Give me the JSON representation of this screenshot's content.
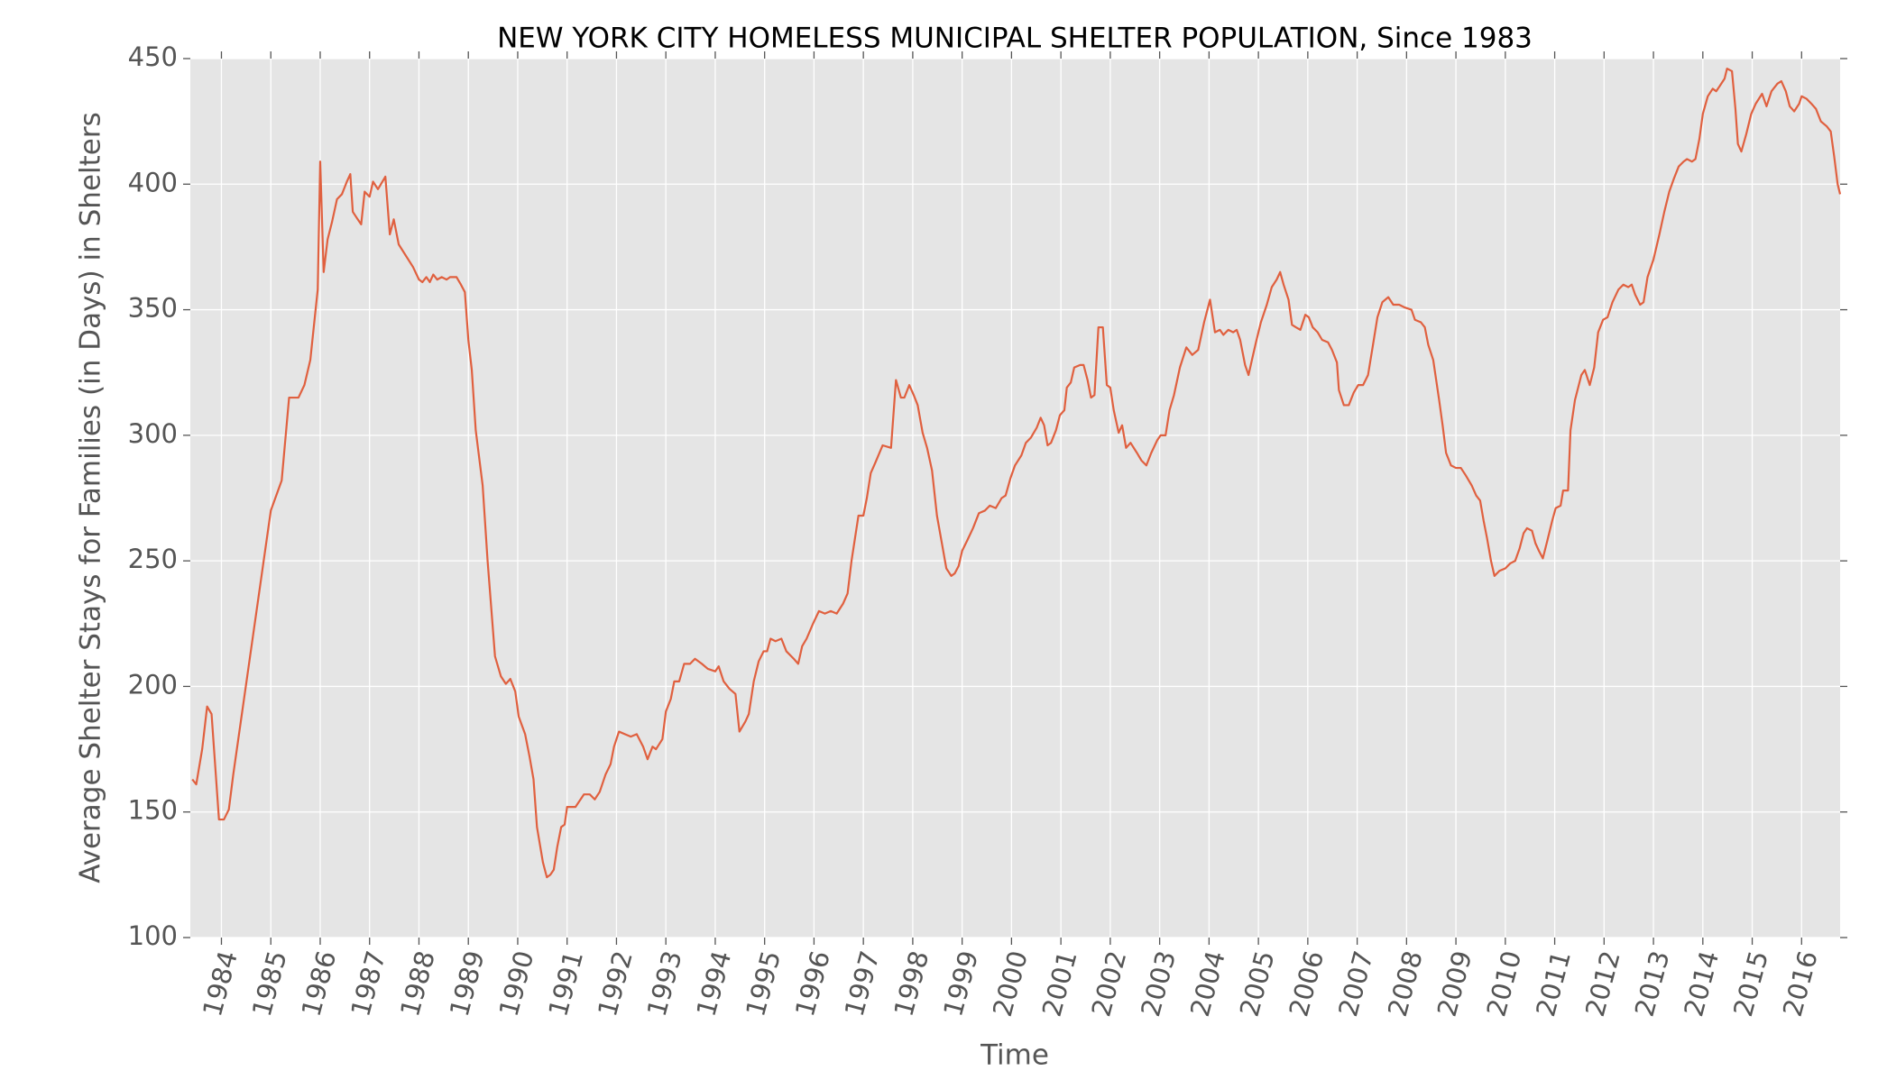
{
  "chart_data": {
    "type": "line",
    "title": "NEW YORK CITY HOMELESS MUNICIPAL SHELTER POPULATION, Since 1983",
    "xlabel": "Time",
    "ylabel": "Average Shelter Stays for Families (in Days) in Shelters",
    "color": "#e0603f",
    "grid": true,
    "xlim": [
      1983.37,
      2016.78
    ],
    "ylim": [
      100,
      450
    ],
    "xticks": [
      1984,
      1985,
      1986,
      1987,
      1988,
      1989,
      1990,
      1991,
      1992,
      1993,
      1994,
      1995,
      1996,
      1997,
      1998,
      1999,
      2000,
      2001,
      2002,
      2003,
      2004,
      2005,
      2006,
      2007,
      2008,
      2009,
      2010,
      2011,
      2012,
      2013,
      2014,
      2015,
      2016
    ],
    "yticks": [
      100,
      150,
      200,
      250,
      300,
      350,
      400,
      450
    ],
    "x": [
      1983.41,
      1983.49,
      1983.61,
      1983.71,
      1983.8,
      1983.95,
      1984.05,
      1984.15,
      1984.24,
      1985.0,
      1985.22,
      1985.37,
      1985.56,
      1985.68,
      1985.8,
      1985.88,
      1985.95,
      1986.0,
      1986.07,
      1986.15,
      1986.24,
      1986.34,
      1986.44,
      1986.54,
      1986.61,
      1986.66,
      1986.76,
      1986.83,
      1986.9,
      1987.0,
      1987.07,
      1987.17,
      1987.32,
      1987.41,
      1987.49,
      1987.59,
      1987.88,
      1988.0,
      1988.07,
      1988.15,
      1988.22,
      1988.29,
      1988.37,
      1988.46,
      1988.56,
      1988.63,
      1988.76,
      1988.85,
      1988.93,
      1989.0,
      1989.07,
      1989.15,
      1989.29,
      1989.39,
      1989.54,
      1989.66,
      1989.76,
      1989.85,
      1989.95,
      1990.02,
      1990.15,
      1990.24,
      1990.32,
      1990.39,
      1990.51,
      1990.59,
      1990.66,
      1990.73,
      1990.8,
      1990.88,
      1990.95,
      1991.0,
      1991.17,
      1991.34,
      1991.46,
      1991.56,
      1991.66,
      1991.78,
      1991.88,
      1991.95,
      1992.05,
      1992.17,
      1992.29,
      1992.41,
      1992.54,
      1992.63,
      1992.73,
      1992.8,
      1992.93,
      1993.0,
      1993.1,
      1993.17,
      1993.27,
      1993.37,
      1993.49,
      1993.59,
      1993.73,
      1993.85,
      1994.0,
      1994.07,
      1994.17,
      1994.29,
      1994.41,
      1994.49,
      1994.61,
      1994.68,
      1994.78,
      1994.88,
      1994.98,
      1995.05,
      1995.12,
      1995.22,
      1995.34,
      1995.44,
      1995.59,
      1995.68,
      1995.76,
      1995.85,
      1995.98,
      1996.1,
      1996.22,
      1996.34,
      1996.46,
      1996.59,
      1996.68,
      1996.76,
      1996.83,
      1996.9,
      1997.0,
      1997.07,
      1997.15,
      1997.24,
      1997.39,
      1997.56,
      1997.66,
      1997.76,
      1997.83,
      1997.93,
      1998.02,
      1998.1,
      1998.2,
      1998.29,
      1998.39,
      1998.49,
      1998.59,
      1998.68,
      1998.78,
      1998.85,
      1998.93,
      1999.0,
      1999.1,
      1999.22,
      1999.34,
      1999.46,
      1999.56,
      1999.68,
      1999.8,
      1999.88,
      1999.98,
      2000.07,
      2000.2,
      2000.29,
      2000.39,
      2000.51,
      2000.59,
      2000.66,
      2000.73,
      2000.8,
      2000.9,
      2000.98,
      2001.07,
      2001.12,
      2001.2,
      2001.27,
      2001.39,
      2001.46,
      2001.54,
      2001.61,
      2001.68,
      2001.76,
      2001.85,
      2001.93,
      2002.0,
      2002.07,
      2002.17,
      2002.24,
      2002.32,
      2002.41,
      2002.54,
      2002.63,
      2002.73,
      2002.83,
      2002.95,
      2003.02,
      2003.12,
      2003.2,
      2003.29,
      2003.41,
      2003.54,
      2003.66,
      2003.78,
      2003.9,
      2004.02,
      2004.12,
      2004.22,
      2004.29,
      2004.39,
      2004.49,
      2004.56,
      2004.63,
      2004.73,
      2004.8,
      2004.88,
      2004.95,
      2005.05,
      2005.17,
      2005.27,
      2005.37,
      2005.44,
      2005.51,
      2005.61,
      2005.68,
      2005.76,
      2005.85,
      2005.95,
      2006.02,
      2006.1,
      2006.2,
      2006.29,
      2006.41,
      2006.49,
      2006.59,
      2006.63,
      2006.73,
      2006.83,
      2006.93,
      2007.02,
      2007.12,
      2007.22,
      2007.32,
      2007.41,
      2007.51,
      2007.63,
      2007.73,
      2007.85,
      2007.95,
      2008.1,
      2008.17,
      2008.29,
      2008.37,
      2008.44,
      2008.54,
      2008.66,
      2008.73,
      2008.8,
      2008.9,
      2009.0,
      2009.1,
      2009.2,
      2009.32,
      2009.41,
      2009.49,
      2009.56,
      2009.63,
      2009.71,
      2009.78,
      2009.88,
      2010.0,
      2010.1,
      2010.2,
      2010.29,
      2010.37,
      2010.44,
      2010.54,
      2010.61,
      2010.68,
      2010.76,
      2010.85,
      2010.95,
      2011.02,
      2011.12,
      2011.17,
      2011.27,
      2011.32,
      2011.41,
      2011.54,
      2011.61,
      2011.71,
      2011.8,
      2011.88,
      2011.98,
      2012.07,
      2012.17,
      2012.29,
      2012.39,
      2012.49,
      2012.56,
      2012.63,
      2012.73,
      2012.8,
      2012.88,
      2013.0,
      2013.12,
      2013.22,
      2013.32,
      2013.41,
      2013.51,
      2013.61,
      2013.68,
      2013.78,
      2013.85,
      2013.93,
      2014.0,
      2014.1,
      2014.2,
      2014.27,
      2014.34,
      2014.44,
      2014.49,
      2014.59,
      2014.66,
      2014.71,
      2014.78,
      2014.88,
      2014.98,
      2015.07,
      2015.2,
      2015.29,
      2015.39,
      2015.51,
      2015.59,
      2015.68,
      2015.76,
      2015.85,
      2015.95,
      2016.0,
      2016.1,
      2016.2,
      2016.29,
      2016.39,
      2016.51,
      2016.59,
      2016.66,
      2016.73,
      2016.78
    ],
    "values": [
      163,
      161,
      175,
      192,
      189,
      147,
      147,
      151,
      165,
      270,
      282,
      315,
      315,
      320,
      330,
      345,
      358,
      409,
      365,
      378,
      385,
      394,
      396,
      401,
      404,
      389,
      386,
      384,
      397,
      395,
      401,
      398,
      403,
      380,
      386,
      376,
      367,
      362,
      361,
      363,
      361,
      364,
      362,
      363,
      362,
      363,
      363,
      360,
      357,
      338,
      326,
      302,
      280,
      250,
      212,
      204,
      201,
      203,
      198,
      188,
      181,
      172,
      163,
      144,
      130,
      124,
      125,
      127,
      136,
      144,
      145,
      152,
      152,
      157,
      157,
      155,
      158,
      165,
      169,
      176,
      182,
      181,
      180,
      181,
      176,
      171,
      176,
      175,
      179,
      190,
      195,
      202,
      202,
      209,
      209,
      211,
      209,
      207,
      206,
      208,
      202,
      199,
      197,
      182,
      186,
      189,
      202,
      210,
      214,
      214,
      219,
      218,
      219,
      214,
      211,
      209,
      216,
      219,
      225,
      230,
      229,
      230,
      229,
      233,
      237,
      250,
      259,
      268,
      268,
      275,
      285,
      289,
      296,
      295,
      322,
      315,
      315,
      320,
      316,
      312,
      301,
      295,
      286,
      268,
      257,
      247,
      244,
      245,
      248,
      254,
      258,
      263,
      269,
      270,
      272,
      271,
      275,
      276,
      283,
      288,
      292,
      297,
      299,
      303,
      307,
      304,
      296,
      297,
      302,
      308,
      310,
      319,
      321,
      327,
      328,
      328,
      322,
      315,
      316,
      343,
      343,
      320,
      319,
      310,
      301,
      304,
      295,
      297,
      293,
      290,
      288,
      293,
      298,
      300,
      300,
      310,
      316,
      327,
      335,
      332,
      334,
      345,
      354,
      341,
      342,
      340,
      342,
      341,
      342,
      338,
      328,
      324,
      331,
      337,
      345,
      352,
      359,
      362,
      365,
      360,
      354,
      344,
      343,
      342,
      348,
      347,
      343,
      341,
      338,
      337,
      334,
      329,
      318,
      312,
      312,
      317,
      320,
      320,
      324,
      336,
      347,
      353,
      355,
      352,
      352,
      351,
      350,
      346,
      345,
      343,
      336,
      330,
      314,
      304,
      293,
      288,
      287,
      287,
      284,
      280,
      276,
      274,
      266,
      259,
      250,
      244,
      246,
      247,
      249,
      250,
      255,
      261,
      263,
      262,
      257,
      254,
      251,
      258,
      266,
      271,
      272,
      278,
      278,
      302,
      314,
      324,
      326,
      320,
      327,
      341,
      346,
      347,
      353,
      358,
      360,
      359,
      360,
      356,
      352,
      353,
      363,
      370,
      380,
      389,
      397,
      402,
      407,
      409,
      410,
      409,
      410,
      418,
      428,
      435,
      438,
      437,
      439,
      442,
      446,
      445,
      430,
      416,
      413,
      420,
      428,
      432,
      436,
      431,
      437,
      440,
      441,
      437,
      431,
      429,
      432,
      435,
      434,
      432,
      430,
      425,
      423,
      421,
      411,
      400,
      396
    ]
  }
}
